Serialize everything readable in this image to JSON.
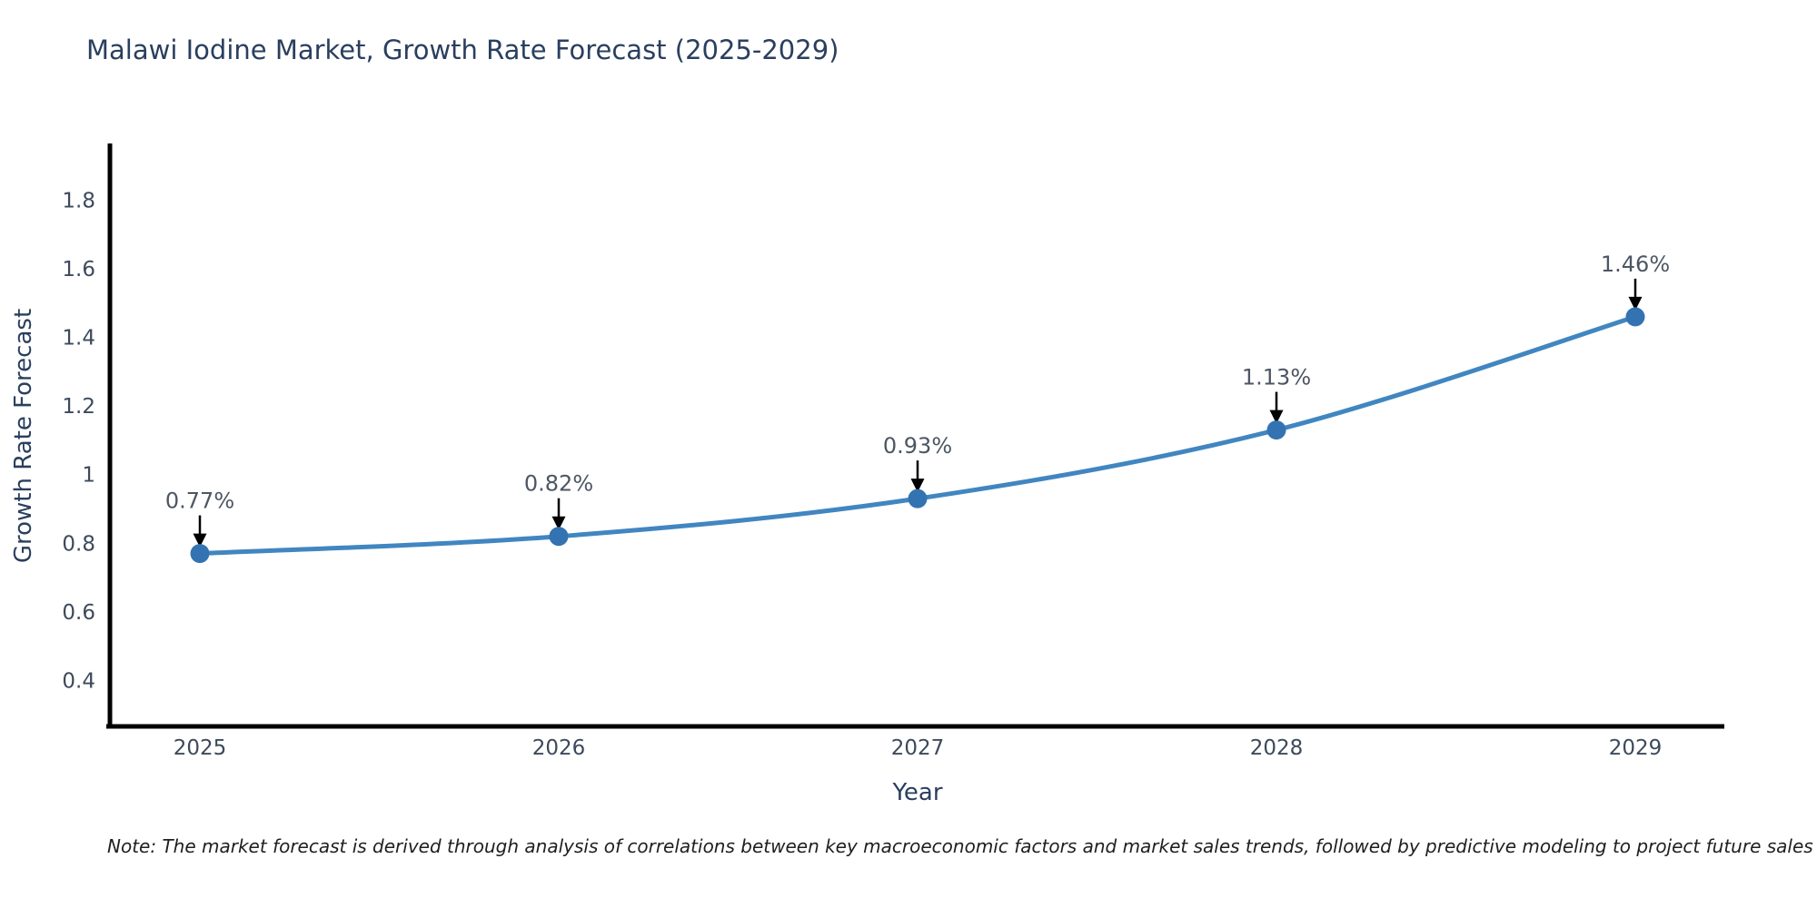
{
  "title": "Malawi Iodine Market, Growth Rate Forecast (2025-2029)",
  "note": "Note: The market forecast is derived through analysis of correlations between key macroeconomic factors and market sales trends, followed by predictive modeling to project future sales",
  "chart_data": {
    "type": "line",
    "title": "Malawi Iodine Market, Growth Rate Forecast (2025-2029)",
    "xlabel": "Year",
    "ylabel": "Growth Rate Forecast",
    "categories": [
      "2025",
      "2026",
      "2027",
      "2028",
      "2029"
    ],
    "values": [
      0.77,
      0.82,
      0.93,
      1.13,
      1.46
    ],
    "point_labels": [
      "0.77%",
      "0.82%",
      "0.93%",
      "1.13%",
      "1.46%"
    ],
    "yticks": [
      1.8,
      1.6,
      1.4,
      1.2,
      1,
      0.8,
      0.6,
      0.4
    ],
    "ylim": [
      0.266,
      1.96
    ],
    "grid": false,
    "legend": "none",
    "line_color": "#4186c0",
    "marker_color": "#3473b2",
    "axis_color": "#000000",
    "tick_color": "#3d4a5c",
    "annotation_color": "#4d5663",
    "arrow_color": "#000000"
  }
}
